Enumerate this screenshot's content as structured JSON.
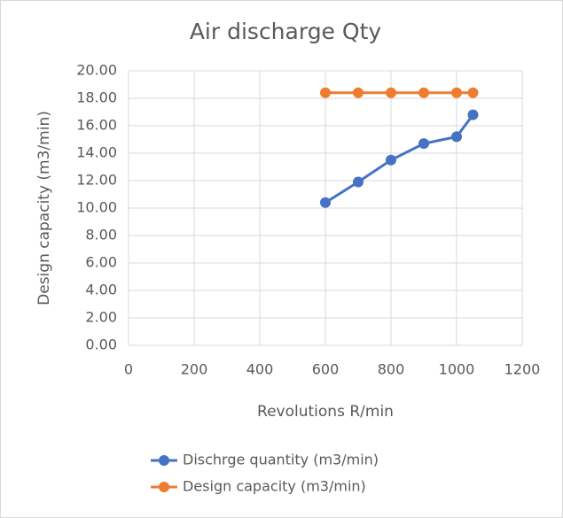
{
  "chart_data": {
    "type": "line",
    "title": "Air discharge Qty",
    "xlabel": "Revolutions R/min",
    "ylabel": "Design capacity (m3/min)",
    "x": [
      600,
      700,
      800,
      900,
      1000,
      1050
    ],
    "series": [
      {
        "name": "Dischrge quantity (m3/min)",
        "color": "#4472c4",
        "values": [
          10.4,
          11.9,
          13.5,
          14.7,
          15.2,
          16.8
        ]
      },
      {
        "name": "Design capacity (m3/min)",
        "color": "#ed7d31",
        "values": [
          18.4,
          18.4,
          18.4,
          18.4,
          18.4,
          18.4
        ]
      }
    ],
    "xlim": [
      0,
      1200
    ],
    "xticks": [
      0,
      200,
      400,
      600,
      800,
      1000,
      1200
    ],
    "ylim": [
      0,
      20
    ],
    "yticks": [
      {
        "value": 0,
        "label": "0.00"
      },
      {
        "value": 2,
        "label": "2.00"
      },
      {
        "value": 4,
        "label": "4.00"
      },
      {
        "value": 6,
        "label": "6.00"
      },
      {
        "value": 8,
        "label": "8.00"
      },
      {
        "value": 10,
        "label": "10.00"
      },
      {
        "value": 12,
        "label": "12.00"
      },
      {
        "value": 14,
        "label": "14.00"
      },
      {
        "value": 16,
        "label": "16.00"
      },
      {
        "value": 18,
        "label": "18.00"
      },
      {
        "value": 20,
        "label": "20.00"
      }
    ],
    "grid": true,
    "legend": "bottom"
  }
}
